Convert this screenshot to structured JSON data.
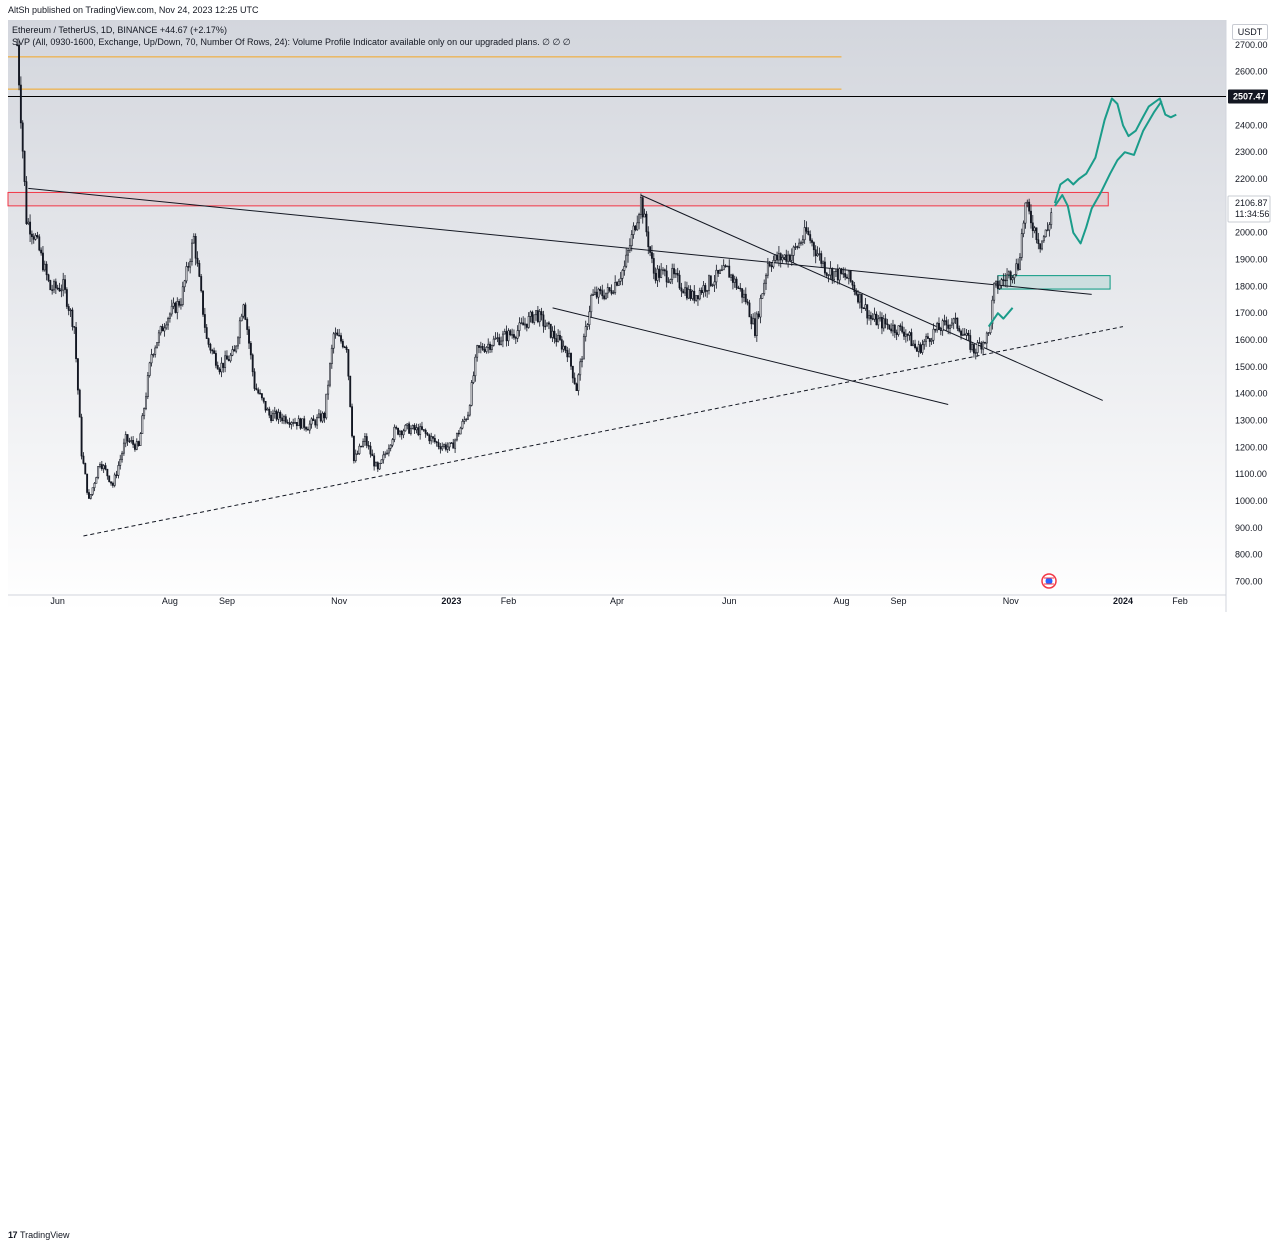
{
  "header": {
    "publish_line": "AltSh published on TradingView.com, Nov 24, 2023 12:25 UTC"
  },
  "legend": {
    "symbol_line": "Ethereum / TetherUS, 1D, BINANCE  +44.67 (+2.17%)",
    "indicator_line": "SVP (All, 0930-1600, Exchange, Up/Down, 70, Number Of Rows, 24): Volume Profile Indicator available only on our upgraded plans.  ∅  ∅  ∅"
  },
  "currency_button": "USDT",
  "footer": {
    "brand": "TradingView",
    "logo_text": "17"
  },
  "chart_data": {
    "type": "candlestick",
    "title": "Ethereum / TetherUS, 1D, BINANCE",
    "x_tick_labels": [
      "Jun",
      "Aug",
      "Sep",
      "Nov",
      "2023",
      "Feb",
      "Apr",
      "Jun",
      "Aug",
      "Sep",
      "Nov",
      "2024",
      "Feb"
    ],
    "x_tick_dates": [
      "2022-06-01",
      "2022-08-01",
      "2022-09-01",
      "2022-11-01",
      "2023-01-01",
      "2023-02-01",
      "2023-04-01",
      "2023-06-01",
      "2023-08-01",
      "2023-09-01",
      "2023-11-01",
      "2024-01-01",
      "2024-02-01"
    ],
    "y_tick_labels": [
      "2700.00",
      "2600.00",
      "2400.00",
      "2300.00",
      "2200.00",
      "2000.00",
      "1900.00",
      "1800.00",
      "1700.00",
      "1600.00",
      "1500.00",
      "1400.00",
      "1300.00",
      "1200.00",
      "1100.00",
      "1000.00",
      "900.00",
      "800.00",
      "700.00"
    ],
    "ylim": [
      650,
      2800
    ],
    "xlim": [
      "2022-05-05",
      "2024-02-26"
    ],
    "price_badges": [
      {
        "value": "2507.47",
        "style": "dark"
      },
      {
        "value": "2106.87",
        "sub": "11:34:56",
        "style": "light"
      }
    ],
    "price_path": [
      [
        "2022-05-10",
        2700
      ],
      [
        "2022-05-15",
        2050
      ],
      [
        "2022-05-20",
        1980
      ],
      [
        "2022-05-28",
        1790
      ],
      [
        "2022-06-04",
        1800
      ],
      [
        "2022-06-10",
        1650
      ],
      [
        "2022-06-14",
        1180
      ],
      [
        "2022-06-18",
        1000
      ],
      [
        "2022-06-24",
        1150
      ],
      [
        "2022-07-01",
        1060
      ],
      [
        "2022-07-08",
        1230
      ],
      [
        "2022-07-15",
        1200
      ],
      [
        "2022-07-22",
        1550
      ],
      [
        "2022-07-30",
        1680
      ],
      [
        "2022-08-07",
        1750
      ],
      [
        "2022-08-14",
        1980
      ],
      [
        "2022-08-21",
        1600
      ],
      [
        "2022-08-28",
        1500
      ],
      [
        "2022-09-05",
        1550
      ],
      [
        "2022-09-10",
        1750
      ],
      [
        "2022-09-16",
        1430
      ],
      [
        "2022-09-24",
        1320
      ],
      [
        "2022-10-03",
        1310
      ],
      [
        "2022-10-15",
        1280
      ],
      [
        "2022-10-24",
        1320
      ],
      [
        "2022-10-29",
        1620
      ],
      [
        "2022-11-05",
        1580
      ],
      [
        "2022-11-09",
        1150
      ],
      [
        "2022-11-15",
        1230
      ],
      [
        "2022-11-22",
        1110
      ],
      [
        "2022-12-01",
        1260
      ],
      [
        "2022-12-08",
        1270
      ],
      [
        "2022-12-16",
        1260
      ],
      [
        "2022-12-25",
        1210
      ],
      [
        "2023-01-01",
        1200
      ],
      [
        "2023-01-10",
        1330
      ],
      [
        "2023-01-15",
        1560
      ],
      [
        "2023-01-25",
        1600
      ],
      [
        "2023-02-05",
        1630
      ],
      [
        "2023-02-16",
        1700
      ],
      [
        "2023-02-25",
        1620
      ],
      [
        "2023-03-05",
        1560
      ],
      [
        "2023-03-10",
        1420
      ],
      [
        "2023-03-18",
        1760
      ],
      [
        "2023-03-28",
        1780
      ],
      [
        "2023-04-05",
        1870
      ],
      [
        "2023-04-14",
        2120
      ],
      [
        "2023-04-21",
        1850
      ],
      [
        "2023-05-01",
        1840
      ],
      [
        "2023-05-12",
        1760
      ],
      [
        "2023-05-22",
        1820
      ],
      [
        "2023-05-31",
        1860
      ],
      [
        "2023-06-10",
        1750
      ],
      [
        "2023-06-15",
        1640
      ],
      [
        "2023-06-22",
        1890
      ],
      [
        "2023-07-05",
        1920
      ],
      [
        "2023-07-13",
        2000
      ],
      [
        "2023-07-24",
        1860
      ],
      [
        "2023-08-05",
        1830
      ],
      [
        "2023-08-17",
        1680
      ],
      [
        "2023-08-28",
        1650
      ],
      [
        "2023-09-05",
        1630
      ],
      [
        "2023-09-11",
        1560
      ],
      [
        "2023-09-20",
        1630
      ],
      [
        "2023-09-30",
        1670
      ],
      [
        "2023-10-04",
        1650
      ],
      [
        "2023-10-12",
        1560
      ],
      [
        "2023-10-20",
        1620
      ],
      [
        "2023-10-23",
        1790
      ],
      [
        "2023-11-01",
        1850
      ],
      [
        "2023-11-05",
        1880
      ],
      [
        "2023-11-09",
        2100
      ],
      [
        "2023-11-12",
        2050
      ],
      [
        "2023-11-17",
        1960
      ],
      [
        "2023-11-21",
        2010
      ],
      [
        "2023-11-24",
        2106.87
      ]
    ],
    "horizontal_lines": [
      {
        "name": "resistance-line-2507",
        "price": 2507.47,
        "color": "#000000",
        "style": "solid"
      },
      {
        "name": "orange-line-upper",
        "price": 2655,
        "end": "2023-08-01",
        "color": "#f5a623",
        "style": "solid"
      },
      {
        "name": "orange-line-lower",
        "price": 2535,
        "end": "2023-08-01",
        "color": "#f5a623",
        "style": "solid"
      }
    ],
    "zones": [
      {
        "name": "red-resistance-zone",
        "start": "2022-05-05",
        "end": "2023-12-24",
        "top": 2150,
        "bottom": 2100,
        "color": "#f23645"
      },
      {
        "name": "teal-support-zone",
        "start": "2023-10-25",
        "end": "2023-12-25",
        "top": 1840,
        "bottom": 1790,
        "color": "#089981"
      }
    ],
    "trend_lines": [
      {
        "name": "descending-trendline-long",
        "x1": "2022-05-16",
        "y1": 2165,
        "x2": "2023-12-15",
        "y2": 1770,
        "style": "solid"
      },
      {
        "name": "channel-upper-line",
        "x1": "2023-04-14",
        "y1": 2140,
        "x2": "2023-12-21",
        "y2": 1375,
        "style": "solid"
      },
      {
        "name": "channel-lower-line",
        "x1": "2023-02-25",
        "y1": 1720,
        "x2": "2023-09-28",
        "y2": 1360,
        "style": "solid"
      },
      {
        "name": "ascending-support-dashed",
        "x1": "2022-06-15",
        "y1": 870,
        "x2": "2024-01-01",
        "y2": 1650,
        "style": "dashed"
      }
    ],
    "projection_paths": [
      {
        "name": "projection-upper",
        "color": "#1a9c8a",
        "points": [
          [
            "2023-11-25",
            2110
          ],
          [
            "2023-11-28",
            2180
          ],
          [
            "2023-12-02",
            2200
          ],
          [
            "2023-12-05",
            2180
          ],
          [
            "2023-12-08",
            2200
          ],
          [
            "2023-12-12",
            2220
          ],
          [
            "2023-12-17",
            2280
          ],
          [
            "2023-12-22",
            2420
          ],
          [
            "2023-12-26",
            2500
          ],
          [
            "2023-12-29",
            2480
          ],
          [
            "2024-01-01",
            2400
          ],
          [
            "2024-01-04",
            2360
          ],
          [
            "2024-01-08",
            2380
          ],
          [
            "2024-01-11",
            2420
          ],
          [
            "2024-01-15",
            2470
          ],
          [
            "2024-01-21",
            2500
          ],
          [
            "2024-01-24",
            2440
          ],
          [
            "2024-01-27",
            2430
          ],
          [
            "2024-01-30",
            2440
          ]
        ]
      },
      {
        "name": "projection-lower",
        "color": "#1a9c8a",
        "points": [
          [
            "2023-11-25",
            2100
          ],
          [
            "2023-11-29",
            2140
          ],
          [
            "2023-12-02",
            2100
          ],
          [
            "2023-12-05",
            2000
          ],
          [
            "2023-12-09",
            1960
          ],
          [
            "2023-12-12",
            2020
          ],
          [
            "2023-12-15",
            2090
          ],
          [
            "2023-12-20",
            2150
          ],
          [
            "2023-12-25",
            2220
          ],
          [
            "2023-12-29",
            2270
          ],
          [
            "2024-01-02",
            2300
          ],
          [
            "2024-01-07",
            2290
          ],
          [
            "2024-01-12",
            2380
          ],
          [
            "2024-01-18",
            2450
          ],
          [
            "2024-01-22",
            2490
          ]
        ]
      },
      {
        "name": "projection-past",
        "color": "#1a9c8a",
        "points": [
          [
            "2023-10-20",
            1650
          ],
          [
            "2023-10-25",
            1700
          ],
          [
            "2023-10-28",
            1680
          ],
          [
            "2023-11-02",
            1720
          ]
        ]
      }
    ],
    "grid": false
  }
}
